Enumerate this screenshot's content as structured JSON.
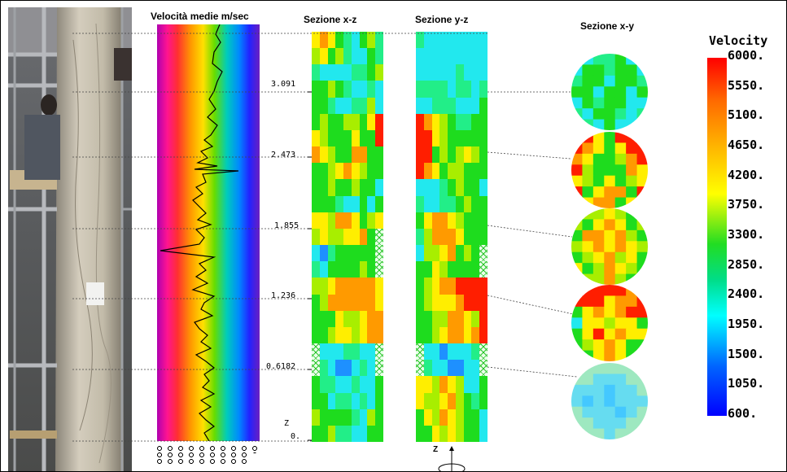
{
  "titles": {
    "velocity_profile": "Velocità medie m/sec",
    "section_xz": "Sezione x-z",
    "section_yz": "Sezione y-z",
    "section_xy": "Sezione x-y"
  },
  "depth_labels": [
    "3.091",
    "2.473",
    "1.855",
    "1.236",
    "0.6182",
    "0."
  ],
  "axis_label_z": "Z",
  "legend": {
    "title": "Velocity",
    "ticks": [
      "6000.",
      "5550.",
      "5100.",
      "4650.",
      "4200.",
      "3750.",
      "3300.",
      "2850.",
      "2400.",
      "1950.",
      "1500.",
      "1050.",
      "600."
    ],
    "colors": [
      "#ff0000",
      "#ff6600",
      "#ffb000",
      "#ffff00",
      "#22dd22",
      "#00ffff",
      "#0044ff",
      "#0000ff"
    ]
  },
  "profile_axis_tick_count": 10,
  "circle_count": 5
}
